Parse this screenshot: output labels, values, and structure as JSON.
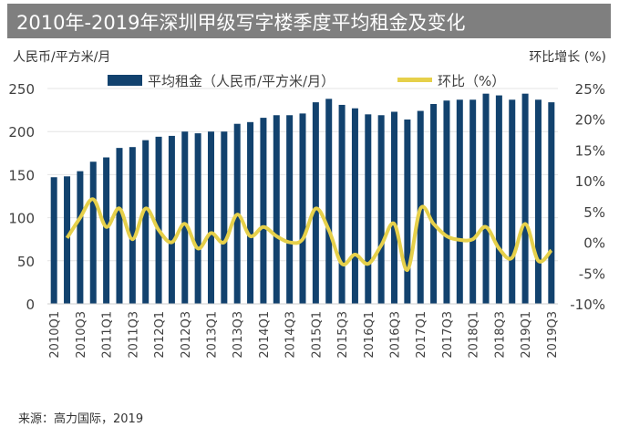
{
  "title": "2010年-2019年深圳甲级写字楼季度平均租金及变化",
  "source": "来源：高力国际，2019",
  "chart_data": {
    "type": "bar+line",
    "title": "2010年-2019年深圳甲级写字楼季度平均租金及变化",
    "ylabel_left": "人民币/平方米/月",
    "ylabel_right": "环比增长 (%)",
    "ylim_left": [
      0,
      250
    ],
    "yticks_left": [
      "0",
      "50",
      "100",
      "150",
      "200",
      "250"
    ],
    "ylim_right": [
      -10,
      25
    ],
    "yticks_right": [
      "-10%",
      "-5%",
      "0%",
      "5%",
      "10%",
      "15%",
      "20%",
      "25%"
    ],
    "legend_placement": "top",
    "grid": true,
    "colors": {
      "bar": "#12426e",
      "line": "#e6d04a"
    },
    "categories": [
      "2010Q1",
      "2010Q2",
      "2010Q3",
      "2010Q4",
      "2011Q1",
      "2011Q2",
      "2011Q3",
      "2011Q4",
      "2012Q1",
      "2012Q2",
      "2012Q3",
      "2012Q4",
      "2013Q1",
      "2013Q2",
      "2013Q3",
      "2013Q4",
      "2014Q1",
      "2014Q2",
      "2014Q3",
      "2014Q4",
      "2015Q1",
      "2015Q2",
      "2015Q3",
      "2015Q4",
      "2016Q1",
      "2016Q2",
      "2016Q3",
      "2016Q4",
      "2017Q1",
      "2017Q2",
      "2017Q3",
      "2017Q4",
      "2018Q1",
      "2018Q2",
      "2018Q3",
      "2018Q4",
      "2019Q1",
      "2019Q2",
      "2019Q3"
    ],
    "tick_labels_x": [
      "2010Q1",
      "2010Q3",
      "2011Q1",
      "2011Q3",
      "2012Q1",
      "2012Q3",
      "2013Q1",
      "2013Q3",
      "2014Q1",
      "2014Q3",
      "2015Q1",
      "2015Q3",
      "2016Q1",
      "2016Q3",
      "2017Q1",
      "2017Q3",
      "2018Q1",
      "2018Q3",
      "2019Q1",
      "2019Q3"
    ],
    "series": [
      {
        "name": "平均租金（人民币/平方米/月）",
        "type": "bar",
        "axis": "left",
        "values": [
          147,
          148,
          154,
          165,
          170,
          181,
          182,
          190,
          194,
          195,
          200,
          198,
          200,
          200,
          209,
          211,
          216,
          219,
          219,
          221,
          234,
          238,
          231,
          227,
          220,
          219,
          223,
          214,
          224,
          232,
          236,
          237,
          237,
          244,
          242,
          237,
          244,
          237,
          234
        ]
      },
      {
        "name": "环比（%）",
        "type": "line",
        "axis": "right",
        "values": [
          null,
          0.7,
          4,
          7,
          2.5,
          5.5,
          0.5,
          5.5,
          2,
          0,
          3,
          -1,
          1.5,
          0,
          4.5,
          1,
          2.5,
          1,
          0,
          0.5,
          5.5,
          2,
          -3.5,
          -2,
          -3.5,
          -0.5,
          3,
          -4.5,
          5.5,
          3,
          1,
          0.4,
          0.5,
          2.5,
          -1,
          -2.5,
          3,
          -3,
          -1.3
        ]
      }
    ]
  }
}
